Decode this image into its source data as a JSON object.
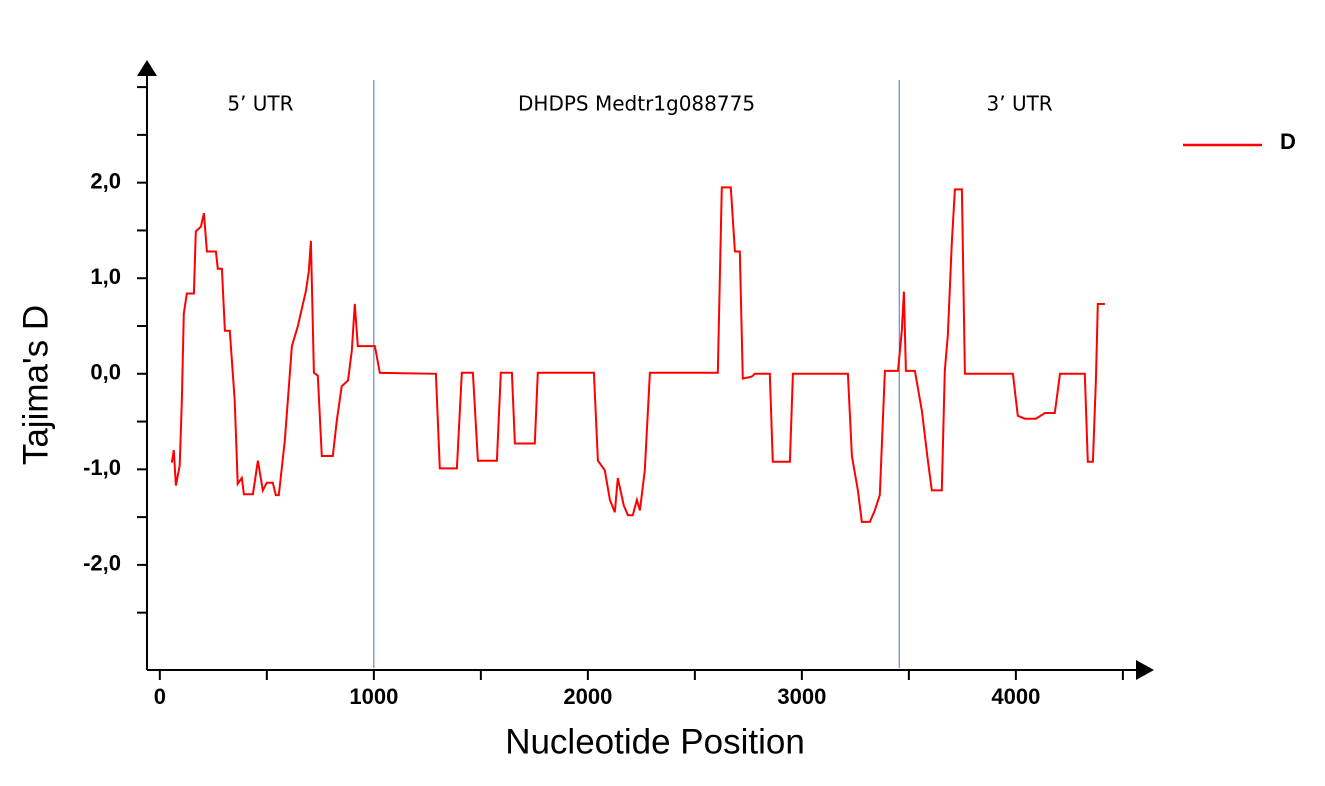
{
  "chart_data": {
    "type": "line",
    "x_label": "Nucleotide Position",
    "y_label": "Tajima's D",
    "xlim": [
      -60,
      4580
    ],
    "ylim": [
      -3.1,
      3.2
    ],
    "xticks": [
      0,
      1000,
      2000,
      3000,
      4000
    ],
    "x_minor_ticks": [
      500,
      1500,
      2500,
      3500,
      4500
    ],
    "yticks": [
      {
        "value": -2,
        "label": "-2,0"
      },
      {
        "value": -1,
        "label": "-1,0"
      },
      {
        "value": 0,
        "label": "0,0"
      },
      {
        "value": 1,
        "label": "1,0"
      },
      {
        "value": 2,
        "label": "2,0"
      }
    ],
    "y_minor_ticks": [
      -2.5,
      -1.5,
      -0.5,
      0.5,
      1.5,
      2.5,
      3.0
    ],
    "region_boundaries": [
      1000,
      3455
    ],
    "region_labels": [
      "5’ UTR",
      "DHDPS Medtr1g088775",
      "3’ UTR"
    ],
    "legend_position": "right",
    "x": [
      56,
      65,
      75,
      93,
      103,
      112,
      126,
      159,
      168,
      192,
      206,
      220,
      262,
      271,
      290,
      304,
      327,
      350,
      364,
      383,
      393,
      435,
      458,
      481,
      500,
      528,
      542,
      556,
      584,
      617,
      645,
      659,
      682,
      696,
      706,
      720,
      738,
      757,
      808,
      827,
      850,
      879,
      897,
      911,
      925,
      1005,
      1028,
      1290,
      1308,
      1388,
      1411,
      1463,
      1486,
      1575,
      1593,
      1645,
      1659,
      1752,
      1766,
      2028,
      2047,
      2079,
      2103,
      2126,
      2140,
      2168,
      2187,
      2210,
      2229,
      2243,
      2266,
      2290,
      2607,
      2626,
      2668,
      2687,
      2710,
      2724,
      2766,
      2780,
      2850,
      2864,
      2944,
      2958,
      3215,
      3234,
      3262,
      3280,
      3318,
      3341,
      3364,
      3388,
      3449,
      3467,
      3477,
      3486,
      3528,
      3561,
      3589,
      3607,
      3654,
      3668,
      3682,
      3701,
      3715,
      3748,
      3762,
      3986,
      4009,
      4042,
      4093,
      4136,
      4182,
      4206,
      4322,
      4336,
      4360,
      4374,
      4383,
      4416
    ],
    "series": [
      {
        "name": "D",
        "color": "#ff0000",
        "values": [
          -0.93,
          -0.8,
          -1.17,
          -0.96,
          -0.26,
          0.63,
          0.84,
          0.84,
          1.49,
          1.54,
          1.68,
          1.28,
          1.28,
          1.1,
          1.1,
          0.45,
          0.45,
          -0.28,
          -1.15,
          -1.09,
          -1.26,
          -1.26,
          -0.91,
          -1.22,
          -1.14,
          -1.14,
          -1.27,
          -1.27,
          -0.7,
          0.29,
          0.5,
          0.64,
          0.86,
          1.07,
          1.39,
          0.01,
          -0.02,
          -0.86,
          -0.86,
          -0.49,
          -0.13,
          -0.07,
          0.24,
          0.73,
          0.29,
          0.29,
          0.01,
          0,
          -0.99,
          -0.99,
          0.01,
          0.01,
          -0.91,
          -0.91,
          0.01,
          0.01,
          -0.73,
          -0.73,
          0.01,
          0.01,
          -0.91,
          -1.01,
          -1.32,
          -1.45,
          -1.09,
          -1.38,
          -1.48,
          -1.48,
          -1.32,
          -1.43,
          -1.01,
          0.01,
          0.01,
          1.95,
          1.95,
          1.28,
          1.28,
          -0.05,
          -0.03,
          0,
          0,
          -0.92,
          -0.92,
          0,
          0,
          -0.86,
          -1.22,
          -1.55,
          -1.55,
          -1.43,
          -1.27,
          0.03,
          0.03,
          0.45,
          0.86,
          0.03,
          0.03,
          -0.39,
          -0.91,
          -1.22,
          -1.22,
          0.03,
          0.4,
          1.39,
          1.93,
          1.93,
          0,
          0,
          -0.44,
          -0.47,
          -0.47,
          -0.41,
          -0.41,
          0,
          0,
          -0.92,
          -0.92,
          -0.07,
          0.73,
          0.73
        ]
      }
    ]
  }
}
